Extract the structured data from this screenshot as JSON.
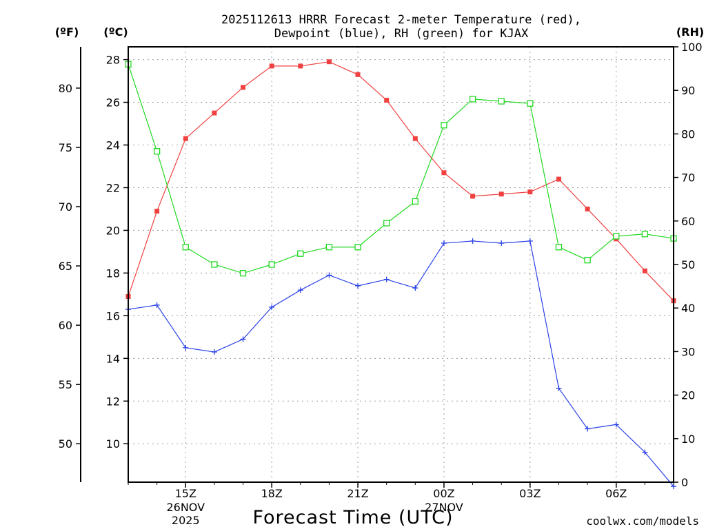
{
  "chart_data": {
    "type": "line",
    "title_line1": "2025112613 HRRR Forecast 2-meter Temperature (red),",
    "title_line2": "Dewpoint (blue), RH (green) for KJAX",
    "xlabel": "Forecast Time (UTC)",
    "credit": "coolwx.com/models",
    "credit_color": "#e8474f",
    "units": {
      "fahrenheit": "(ºF)",
      "celsius": "(ºC)",
      "rh": "(RH)"
    },
    "x_hours": [
      13,
      14,
      15,
      16,
      17,
      18,
      19,
      20,
      21,
      22,
      23,
      24,
      25,
      26,
      27,
      28,
      29,
      30,
      31,
      32
    ],
    "x_ticks": [
      {
        "hour": 15,
        "label": "15Z",
        "sub1": "26NOV",
        "sub2": "2025"
      },
      {
        "hour": 18,
        "label": "18Z",
        "sub1": "",
        "sub2": ""
      },
      {
        "hour": 21,
        "label": "21Z",
        "sub1": "",
        "sub2": ""
      },
      {
        "hour": 24,
        "label": "00Z",
        "sub1": "27NOV",
        "sub2": ""
      },
      {
        "hour": 27,
        "label": "03Z",
        "sub1": "",
        "sub2": ""
      },
      {
        "hour": 30,
        "label": "06Z",
        "sub1": "",
        "sub2": ""
      }
    ],
    "x_range": [
      13,
      32
    ],
    "celsius_range": [
      8.2,
      28.6
    ],
    "celsius_ticks": [
      10,
      12,
      14,
      16,
      18,
      20,
      22,
      24,
      26,
      28
    ],
    "fahrenheit_ticks": [
      50,
      55,
      60,
      65,
      70,
      75,
      80
    ],
    "rh_range": [
      0,
      100
    ],
    "rh_ticks": [
      0,
      10,
      20,
      30,
      40,
      50,
      60,
      70,
      80,
      90,
      100
    ],
    "grid": true,
    "series": [
      {
        "name": "Temperature",
        "color": "#f04040",
        "marker": "filled-square",
        "axis": "celsius",
        "values": [
          16.9,
          20.9,
          24.3,
          25.5,
          26.7,
          27.7,
          27.7,
          27.9,
          27.3,
          26.1,
          24.3,
          22.7,
          21.6,
          21.7,
          21.8,
          22.4,
          21.0,
          19.6,
          18.1,
          16.7
        ]
      },
      {
        "name": "Dewpoint",
        "color": "#2840e8",
        "marker": "plus",
        "axis": "celsius",
        "values": [
          16.3,
          16.5,
          14.5,
          14.3,
          14.9,
          16.4,
          17.2,
          17.9,
          17.4,
          17.7,
          17.3,
          19.4,
          19.5,
          19.4,
          19.5,
          12.6,
          10.7,
          10.9,
          9.6,
          8.0
        ]
      },
      {
        "name": "RH",
        "color": "#20d820",
        "marker": "open-square",
        "axis": "rh",
        "values": [
          96,
          76,
          54,
          50,
          48,
          50,
          52.5,
          54,
          54,
          59.5,
          64.5,
          82,
          88,
          87.5,
          87,
          54,
          51,
          56.5,
          57,
          56
        ]
      }
    ]
  }
}
